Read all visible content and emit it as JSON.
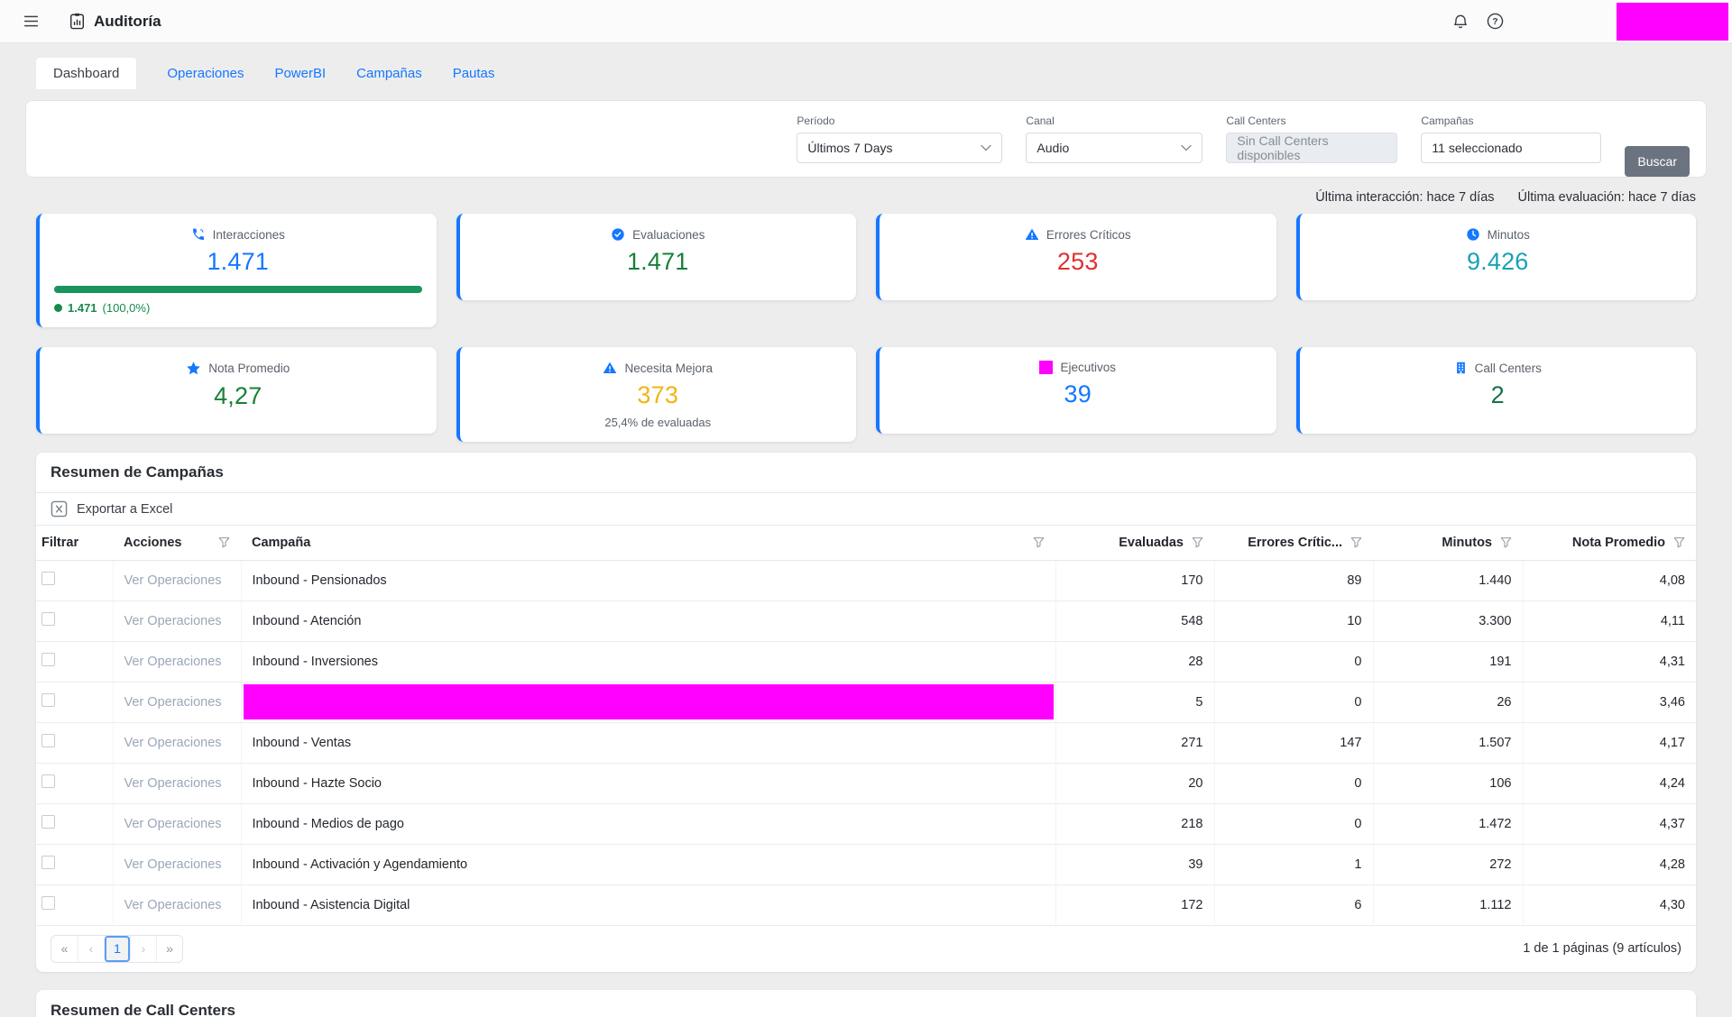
{
  "topbar": {
    "title": "Auditoría"
  },
  "tabs": [
    {
      "label": "Dashboard",
      "active": true
    },
    {
      "label": "Operaciones",
      "active": false
    },
    {
      "label": "PowerBI",
      "active": false
    },
    {
      "label": "Campañas",
      "active": false
    },
    {
      "label": "Pautas",
      "active": false
    }
  ],
  "filters": {
    "periodo": {
      "label": "Período",
      "value": "Últimos 7 Days"
    },
    "canal": {
      "label": "Canal",
      "value": "Audio"
    },
    "call_centers": {
      "label": "Call Centers",
      "placeholder": "Sin Call Centers disponibles"
    },
    "campanas": {
      "label": "Campañas",
      "value": "11 seleccionado"
    },
    "buscar_label": "Buscar"
  },
  "status": {
    "ultima_interaccion": "Última interacción: hace 7 días",
    "ultima_evaluacion": "Última evaluación: hace 7 días"
  },
  "kpis": [
    {
      "label": "Interacciones",
      "value": "1.471",
      "value_color": "#1677ff",
      "icon": "phone",
      "progress": {
        "percent": 100,
        "legend_value": "1.471",
        "legend_percent": "(100,0%)"
      }
    },
    {
      "label": "Evaluaciones",
      "value": "1.471",
      "value_color": "#188038",
      "icon": "check-circle"
    },
    {
      "label": "Errores Críticos",
      "value": "253",
      "value_color": "#e0312f",
      "icon": "warning-triangle"
    },
    {
      "label": "Minutos",
      "value": "9.426",
      "value_color": "#17a2b8",
      "icon": "clock"
    },
    {
      "label": "Nota Promedio",
      "value": "4,27",
      "value_color": "#188038",
      "icon": "star"
    },
    {
      "label": "Necesita Mejora",
      "value": "373",
      "value_color": "#f0b514",
      "icon": "warning-triangle",
      "subtext": "25,4% de evaluadas"
    },
    {
      "label": "Ejecutivos",
      "value": "39",
      "value_color": "#1677ff",
      "icon": "redacted-square"
    },
    {
      "label": "Call Centers",
      "value": "2",
      "value_color": "#157347",
      "icon": "building"
    }
  ],
  "table": {
    "title": "Resumen de Campañas",
    "export_label": "Exportar a Excel",
    "action_label": "Ver Operaciones",
    "columns": [
      "Filtrar",
      "Acciones",
      "Campaña",
      "Evaluadas",
      "Errores Crític...",
      "Minutos",
      "Nota Promedio"
    ],
    "rows": [
      {
        "campana": "Inbound - Pensionados",
        "redacted": false,
        "evaluadas": "170",
        "errores": "89",
        "minutos": "1.440",
        "nota": "4,08"
      },
      {
        "campana": "Inbound - Atención",
        "redacted": false,
        "evaluadas": "548",
        "errores": "10",
        "minutos": "3.300",
        "nota": "4,11"
      },
      {
        "campana": "Inbound - Inversiones",
        "redacted": false,
        "evaluadas": "28",
        "errores": "0",
        "minutos": "191",
        "nota": "4,31"
      },
      {
        "campana": "",
        "redacted": true,
        "evaluadas": "5",
        "errores": "0",
        "minutos": "26",
        "nota": "3,46"
      },
      {
        "campana": "Inbound - Ventas",
        "redacted": false,
        "evaluadas": "271",
        "errores": "147",
        "minutos": "1.507",
        "nota": "4,17"
      },
      {
        "campana": "Inbound - Hazte Socio",
        "redacted": false,
        "evaluadas": "20",
        "errores": "0",
        "minutos": "106",
        "nota": "4,24"
      },
      {
        "campana": "Inbound - Medios de pago",
        "redacted": false,
        "evaluadas": "218",
        "errores": "0",
        "minutos": "1.472",
        "nota": "4,37"
      },
      {
        "campana": "Inbound - Activación y Agendamiento",
        "redacted": false,
        "evaluadas": "39",
        "errores": "1",
        "minutos": "272",
        "nota": "4,28"
      },
      {
        "campana": "Inbound - Asistencia Digital",
        "redacted": false,
        "evaluadas": "172",
        "errores": "6",
        "minutos": "1.112",
        "nota": "4,30"
      }
    ],
    "pagination": {
      "first": "«",
      "prev": "‹",
      "current": "1",
      "next": "›",
      "last": "»",
      "summary": "1 de 1 páginas (9 artículos)"
    }
  },
  "next_section": {
    "title": "Resumen de Call Centers"
  },
  "colors": {
    "accent_blue": "#1677ff",
    "green": "#188038",
    "progress_green": "#18945e",
    "red": "#e0312f",
    "teal": "#17a2b8",
    "amber": "#f0b514",
    "redaction_magenta": "#ff00ff",
    "buscar_gray": "#6b7380"
  }
}
